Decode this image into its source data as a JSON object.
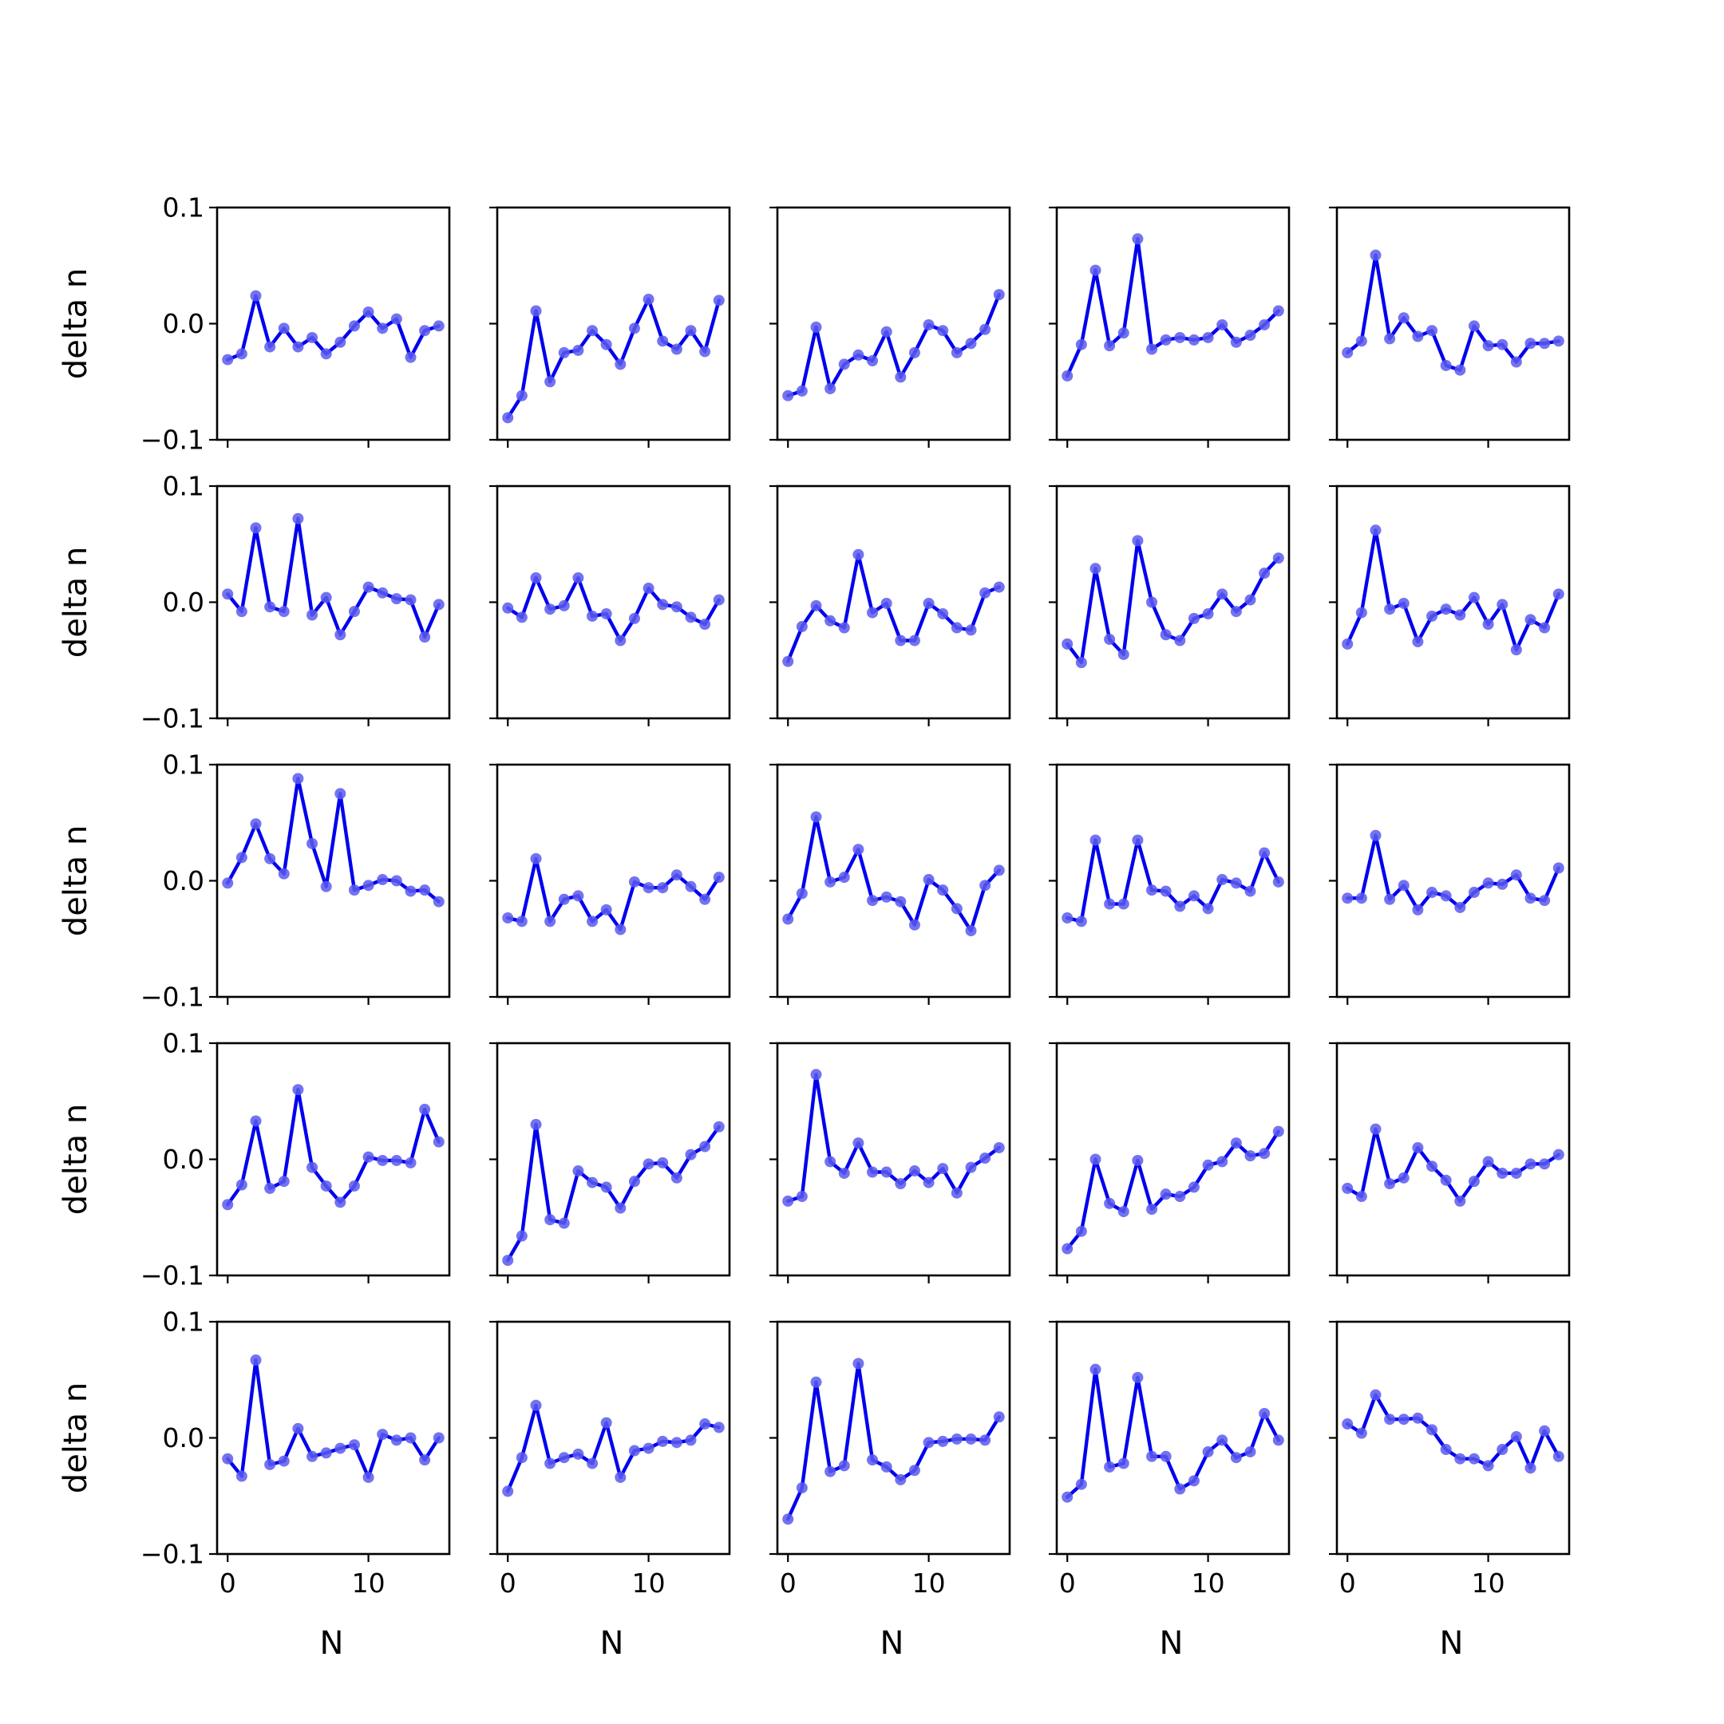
{
  "chart_data": {
    "type": "line",
    "layout": "5x5 grid of subplots",
    "xlabel": "N",
    "ylabel": "delta n",
    "x": [
      0,
      1,
      2,
      3,
      4,
      5,
      6,
      7,
      8,
      9,
      10,
      11,
      12,
      13,
      14,
      15
    ],
    "xticks": [
      0,
      10
    ],
    "xtick_labels": [
      "0",
      "10"
    ],
    "xlim": [
      -0.75,
      15.75
    ],
    "yticks": [
      -0.1,
      0.0,
      0.1
    ],
    "ytick_labels": [
      "−0.1",
      "0.0",
      "0.1"
    ],
    "ylim": [
      -0.1,
      0.1
    ],
    "grid": false,
    "line_color": "#0000ee",
    "marker_color": "#5b5bee",
    "panels": [
      [
        {
          "values": [
            -0.031,
            -0.026,
            0.024,
            -0.02,
            -0.004,
            -0.02,
            -0.012,
            -0.026,
            -0.016,
            -0.002,
            0.01,
            -0.004,
            0.004,
            -0.029,
            -0.006,
            -0.002
          ]
        },
        {
          "values": [
            -0.081,
            -0.062,
            0.011,
            -0.05,
            -0.025,
            -0.023,
            -0.006,
            -0.018,
            -0.035,
            -0.004,
            0.021,
            -0.015,
            -0.022,
            -0.006,
            -0.024,
            0.02
          ]
        },
        {
          "values": [
            -0.062,
            -0.058,
            -0.003,
            -0.056,
            -0.035,
            -0.027,
            -0.032,
            -0.007,
            -0.046,
            -0.025,
            -0.001,
            -0.006,
            -0.025,
            -0.017,
            -0.005,
            0.025
          ]
        },
        {
          "values": [
            -0.045,
            -0.018,
            0.046,
            -0.019,
            -0.008,
            0.073,
            -0.022,
            -0.014,
            -0.012,
            -0.014,
            -0.012,
            -0.001,
            -0.016,
            -0.01,
            -0.001,
            0.011
          ]
        },
        {
          "values": [
            -0.025,
            -0.015,
            0.059,
            -0.013,
            0.005,
            -0.011,
            -0.006,
            -0.036,
            -0.04,
            -0.002,
            -0.019,
            -0.018,
            -0.033,
            -0.017,
            -0.017,
            -0.015
          ]
        }
      ],
      [
        {
          "values": [
            0.007,
            -0.008,
            0.064,
            -0.004,
            -0.008,
            0.072,
            -0.011,
            0.004,
            -0.028,
            -0.008,
            0.013,
            0.008,
            0.003,
            0.002,
            -0.03,
            -0.002
          ]
        },
        {
          "values": [
            -0.005,
            -0.013,
            0.021,
            -0.006,
            -0.003,
            0.021,
            -0.012,
            -0.01,
            -0.033,
            -0.014,
            0.012,
            -0.002,
            -0.004,
            -0.013,
            -0.019,
            0.002
          ]
        },
        {
          "values": [
            -0.051,
            -0.021,
            -0.003,
            -0.016,
            -0.022,
            0.041,
            -0.009,
            -0.001,
            -0.033,
            -0.033,
            -0.001,
            -0.01,
            -0.022,
            -0.024,
            0.008,
            0.013
          ]
        },
        {
          "values": [
            -0.036,
            -0.052,
            0.029,
            -0.032,
            -0.045,
            0.053,
            0.0,
            -0.028,
            -0.033,
            -0.014,
            -0.01,
            0.007,
            -0.008,
            0.002,
            0.025,
            0.038
          ]
        },
        {
          "values": [
            -0.036,
            -0.009,
            0.062,
            -0.006,
            -0.001,
            -0.034,
            -0.012,
            -0.006,
            -0.011,
            0.004,
            -0.019,
            -0.002,
            -0.041,
            -0.015,
            -0.022,
            0.007
          ]
        }
      ],
      [
        {
          "values": [
            -0.002,
            0.02,
            0.049,
            0.019,
            0.006,
            0.088,
            0.032,
            -0.005,
            0.075,
            -0.008,
            -0.004,
            0.001,
            0.0,
            -0.009,
            -0.008,
            -0.018
          ]
        },
        {
          "values": [
            -0.032,
            -0.035,
            0.019,
            -0.035,
            -0.016,
            -0.013,
            -0.035,
            -0.025,
            -0.042,
            -0.001,
            -0.006,
            -0.006,
            0.005,
            -0.005,
            -0.016,
            0.003
          ]
        },
        {
          "values": [
            -0.033,
            -0.011,
            0.055,
            -0.001,
            0.003,
            0.027,
            -0.017,
            -0.014,
            -0.018,
            -0.038,
            0.001,
            -0.008,
            -0.024,
            -0.043,
            -0.004,
            0.009
          ]
        },
        {
          "values": [
            -0.032,
            -0.035,
            0.035,
            -0.02,
            -0.02,
            0.035,
            -0.008,
            -0.009,
            -0.022,
            -0.013,
            -0.024,
            0.001,
            -0.002,
            -0.009,
            0.024,
            -0.001
          ]
        },
        {
          "values": [
            -0.015,
            -0.015,
            0.039,
            -0.016,
            -0.004,
            -0.025,
            -0.01,
            -0.013,
            -0.023,
            -0.01,
            -0.002,
            -0.003,
            0.005,
            -0.015,
            -0.017,
            0.011
          ]
        }
      ],
      [
        {
          "values": [
            -0.039,
            -0.022,
            0.033,
            -0.025,
            -0.019,
            0.06,
            -0.007,
            -0.023,
            -0.037,
            -0.023,
            0.002,
            -0.001,
            -0.001,
            -0.003,
            0.043,
            0.015
          ]
        },
        {
          "values": [
            -0.087,
            -0.066,
            0.03,
            -0.052,
            -0.055,
            -0.01,
            -0.02,
            -0.024,
            -0.042,
            -0.019,
            -0.004,
            -0.003,
            -0.016,
            0.004,
            0.011,
            0.028
          ]
        },
        {
          "values": [
            -0.036,
            -0.032,
            0.073,
            -0.002,
            -0.012,
            0.014,
            -0.011,
            -0.011,
            -0.021,
            -0.01,
            -0.02,
            -0.008,
            -0.029,
            -0.007,
            0.001,
            0.01
          ]
        },
        {
          "values": [
            -0.077,
            -0.062,
            0.0,
            -0.038,
            -0.045,
            -0.001,
            -0.043,
            -0.03,
            -0.032,
            -0.024,
            -0.005,
            -0.002,
            0.014,
            0.003,
            0.005,
            0.024
          ]
        },
        {
          "values": [
            -0.025,
            -0.032,
            0.026,
            -0.021,
            -0.016,
            0.01,
            -0.006,
            -0.018,
            -0.036,
            -0.019,
            -0.002,
            -0.012,
            -0.012,
            -0.004,
            -0.004,
            0.004
          ]
        }
      ],
      [
        {
          "values": [
            -0.018,
            -0.033,
            0.067,
            -0.023,
            -0.02,
            0.008,
            -0.016,
            -0.013,
            -0.009,
            -0.006,
            -0.034,
            0.003,
            -0.002,
            0.0,
            -0.019,
            0.0
          ]
        },
        {
          "values": [
            -0.046,
            -0.017,
            0.028,
            -0.022,
            -0.017,
            -0.014,
            -0.022,
            0.013,
            -0.034,
            -0.011,
            -0.009,
            -0.003,
            -0.004,
            -0.002,
            0.012,
            0.009
          ]
        },
        {
          "values": [
            -0.07,
            -0.043,
            0.048,
            -0.029,
            -0.024,
            0.064,
            -0.019,
            -0.025,
            -0.036,
            -0.028,
            -0.004,
            -0.003,
            -0.001,
            -0.001,
            -0.002,
            0.018
          ]
        },
        {
          "values": [
            -0.051,
            -0.04,
            0.059,
            -0.025,
            -0.022,
            0.052,
            -0.016,
            -0.016,
            -0.044,
            -0.037,
            -0.012,
            -0.002,
            -0.017,
            -0.012,
            0.021,
            -0.002
          ]
        },
        {
          "values": [
            0.012,
            0.004,
            0.037,
            0.016,
            0.016,
            0.017,
            0.007,
            -0.01,
            -0.018,
            -0.018,
            -0.024,
            -0.01,
            0.001,
            -0.026,
            0.006,
            -0.016
          ]
        }
      ]
    ]
  }
}
